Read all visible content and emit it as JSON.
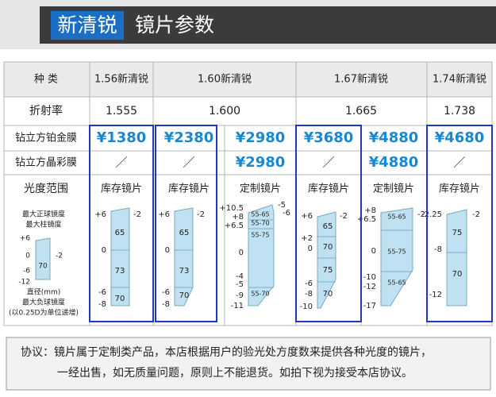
{
  "header": {
    "badge": "新清锐",
    "title": "镜片参数"
  },
  "table": {
    "header_row": [
      "种 类",
      "1.56新清锐",
      "1.60新清锐",
      "1.67新清锐",
      "1.74新清锐"
    ],
    "refractive_row": [
      "折射率",
      "1.555",
      "1.600",
      "1.665",
      "1.738"
    ],
    "coating_platinum": {
      "label": "钻立方铂金膜",
      "cells": [
        "¥1380",
        "¥2380",
        "¥2980",
        "¥3680",
        "¥4880",
        "¥4680"
      ]
    },
    "coating_crystal": {
      "label": "钻立方晶彩膜",
      "cells": [
        "／",
        "／",
        "¥2980",
        "／",
        "¥4880",
        "／"
      ]
    },
    "range": {
      "label": "光度范围",
      "legend": {
        "top": [
          "最大正球镜度",
          "最大柱镜度"
        ],
        "left": [
          "+6",
          "0",
          "-6",
          "-12"
        ],
        "right": [
          "-2"
        ],
        "inner": [
          "70"
        ],
        "bottom": [
          "直径(mm)",
          "最大负球镜度",
          "(以0.25D为单位递增)"
        ]
      },
      "columns": [
        {
          "kind": "库存镜片",
          "left": [
            "+6",
            "0",
            "-6",
            "-8"
          ],
          "right": [
            "-2"
          ],
          "inner": [
            "65",
            "73",
            "70"
          ]
        },
        {
          "kind": "库存镜片",
          "left": [
            "+6",
            "0",
            "-6",
            "-8"
          ],
          "right": [
            "-2"
          ],
          "inner": [
            "65",
            "73",
            "70"
          ]
        },
        {
          "kind": "定制镜片",
          "left": [
            "+10.5",
            "+8",
            "+6.5",
            "0",
            "-4",
            "-5",
            "-9",
            "-11"
          ],
          "right": [
            "-5",
            "-6"
          ],
          "inner": [
            "55-65",
            "55-70",
            "55-75",
            "55-70"
          ]
        },
        {
          "kind": "库存镜片",
          "left": [
            "+6",
            "+2",
            "0",
            "-6",
            "-8",
            "-10"
          ],
          "right": [
            "-2"
          ],
          "inner": [
            "65",
            "70",
            "75",
            "70"
          ]
        },
        {
          "kind": "定制镜片",
          "left": [
            "+8",
            "+6.5",
            "0",
            "-10",
            "-12",
            "-17"
          ],
          "right": [
            "-2"
          ],
          "inner": [
            "55-65",
            "55-75",
            "55-65"
          ]
        },
        {
          "kind": "库存镜片",
          "left": [
            "-2.25",
            "-8",
            "-12"
          ],
          "right": [
            "-2"
          ],
          "inner": [
            "75",
            "70"
          ]
        }
      ]
    }
  },
  "notice": [
    "协议：镜片属于定制类产品，本店根据用户的验光处方度数来提供各种光度的镜片，",
    "一经出售，如无质量问题，原则上不能退货。如拍下视为接受本店协议。"
  ]
}
